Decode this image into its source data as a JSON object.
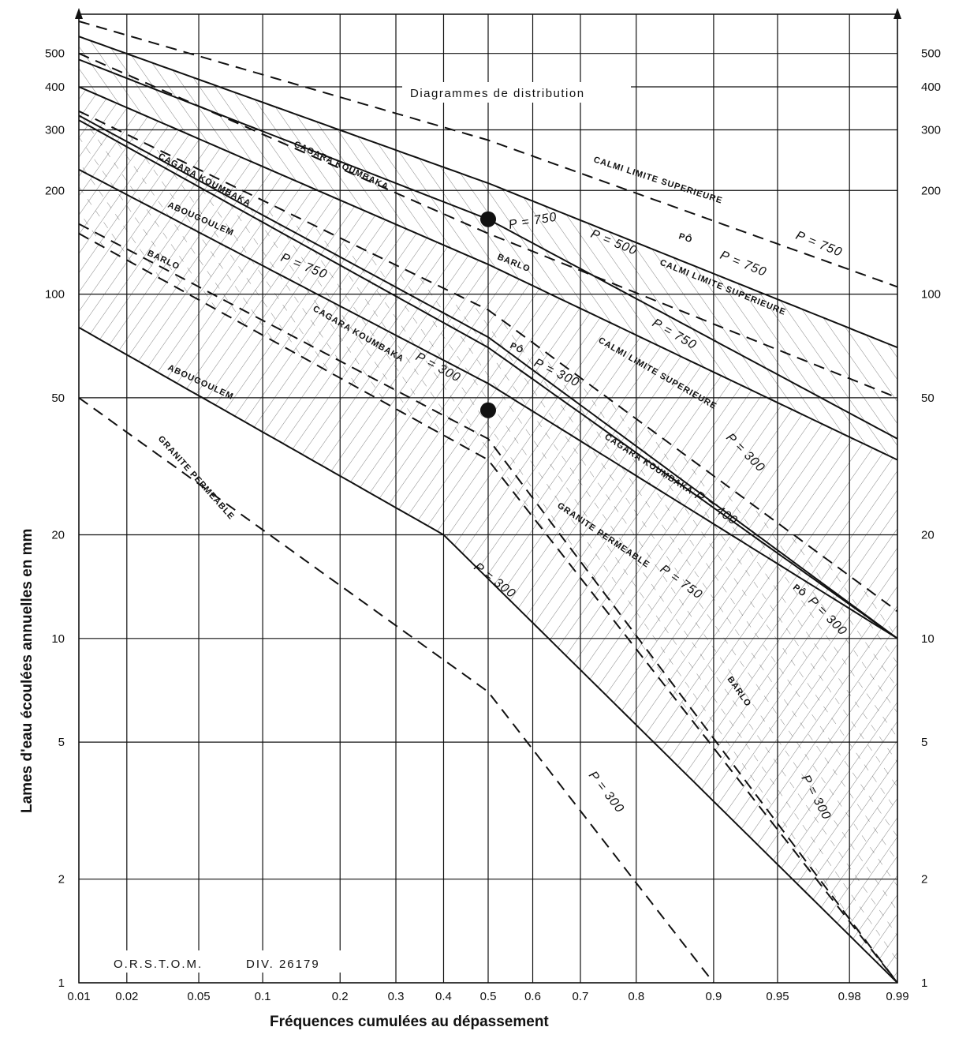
{
  "chart_data": {
    "type": "line",
    "title": "Diagrammes de distribution",
    "xlabel": "Fréquences cumulées au dépassement",
    "ylabel": "Lames d'eau écoulées annuelles en mm",
    "x_scale": "probability (normal)",
    "y_scale": "log",
    "xlim": [
      0.01,
      0.99
    ],
    "ylim": [
      1,
      650
    ],
    "x_ticks": [
      0.01,
      0.02,
      0.05,
      0.1,
      0.2,
      0.3,
      0.4,
      0.5,
      0.6,
      0.7,
      0.8,
      0.9,
      0.95,
      0.98,
      0.99
    ],
    "x_tick_labels": [
      "0.01",
      "0.02",
      "0.05",
      "0.1",
      "0.2",
      "0.3",
      "0.4",
      "0.5",
      "0.6",
      "0.7",
      "0.8",
      "0.9",
      "0.95",
      "0.98",
      "0.99"
    ],
    "y_ticks": [
      1,
      2,
      5,
      10,
      20,
      50,
      100,
      200,
      300,
      400,
      500
    ],
    "y_tick_labels": [
      "1",
      "2",
      "5",
      "10",
      "20",
      "50",
      "100",
      "200",
      "300",
      "400",
      "500"
    ],
    "grid": true,
    "series": [
      {
        "label": "Calmi limite supérieure P = 750",
        "style": "dashed",
        "x": [
          0.01,
          0.5,
          0.99
        ],
        "y": [
          620,
          280,
          105
        ]
      },
      {
        "label": "Pô P = 750",
        "style": "solid",
        "x": [
          0.01,
          0.5,
          0.99
        ],
        "y": [
          560,
          210,
          70
        ]
      },
      {
        "label": "Cagara Koumbaka P = 750",
        "style": "solid",
        "x": [
          0.01,
          0.5,
          0.99
        ],
        "y": [
          480,
          165,
          38
        ]
      },
      {
        "label": "Calmi limite supérieure P = 750",
        "style": "dashed",
        "x": [
          0.01,
          0.5,
          0.99
        ],
        "y": [
          500,
          150,
          50
        ]
      },
      {
        "label": "Barlo P = 500",
        "style": "solid",
        "x": [
          0.01,
          0.5,
          0.99
        ],
        "y": [
          400,
          122,
          33
        ]
      },
      {
        "label": "Cagara Koumbaka P = 750",
        "style": "solid",
        "x": [
          0.01,
          0.5,
          0.99
        ],
        "y": [
          320,
          70,
          10
        ]
      },
      {
        "label": "Pô P = 300",
        "style": "solid",
        "x": [
          0.01,
          0.5,
          0.99
        ],
        "y": [
          330,
          75,
          10
        ]
      },
      {
        "label": "Calmi limite supérieure P = 300",
        "style": "dashed",
        "x": [
          0.01,
          0.5,
          0.99
        ],
        "y": [
          340,
          90,
          12
        ]
      },
      {
        "label": "Abougoulem P = 750",
        "style": "solid",
        "x": [
          0.01,
          0.5,
          0.99
        ],
        "y": [
          230,
          55,
          10
        ]
      },
      {
        "label": "Barlo P = 300",
        "style": "dashed",
        "x": [
          0.01,
          0.5,
          0.99
        ],
        "y": [
          160,
          38,
          1
        ]
      },
      {
        "label": "Granite perméable P = 750",
        "style": "dashed",
        "x": [
          0.01,
          0.5,
          0.99
        ],
        "y": [
          150,
          33,
          1
        ]
      },
      {
        "label": "Abougoulem P = 300",
        "style": "solid",
        "x": [
          0.01,
          0.4,
          0.99
        ],
        "y": [
          80,
          20,
          1
        ]
      },
      {
        "label": "Granite perméable P = 300",
        "style": "dashed",
        "x": [
          0.01,
          0.5,
          0.9
        ],
        "y": [
          50,
          7,
          1
        ]
      }
    ],
    "points": [
      {
        "x": 0.5,
        "y": 165
      },
      {
        "x": 0.5,
        "y": 46
      }
    ],
    "annotations": [
      "CAGARA KOUMBAKA",
      "CALMI LIMITE SUPERIEURE",
      "PÔ",
      "BARLO",
      "ABOUGOULEM",
      "GRANITE PERMEABLE",
      "P = 750",
      "P = 500",
      "P = 400",
      "P = 300"
    ]
  },
  "labels": {
    "cagara": "CAGARA KOUMBAKA",
    "calmi": "CALMI LIMITE SUPERIEURE",
    "po": "PÔ",
    "barlo": "BARLO",
    "abougoulem": "ABOUGOULEM",
    "granite": "GRANITE PERMEABLE",
    "p750": "P = 750",
    "p500": "P = 500",
    "p400": "P = 400",
    "p300": "P = 300"
  },
  "footer": {
    "orstom": "O.R.S.T.O.M.",
    "div": "DIV. 26179"
  }
}
